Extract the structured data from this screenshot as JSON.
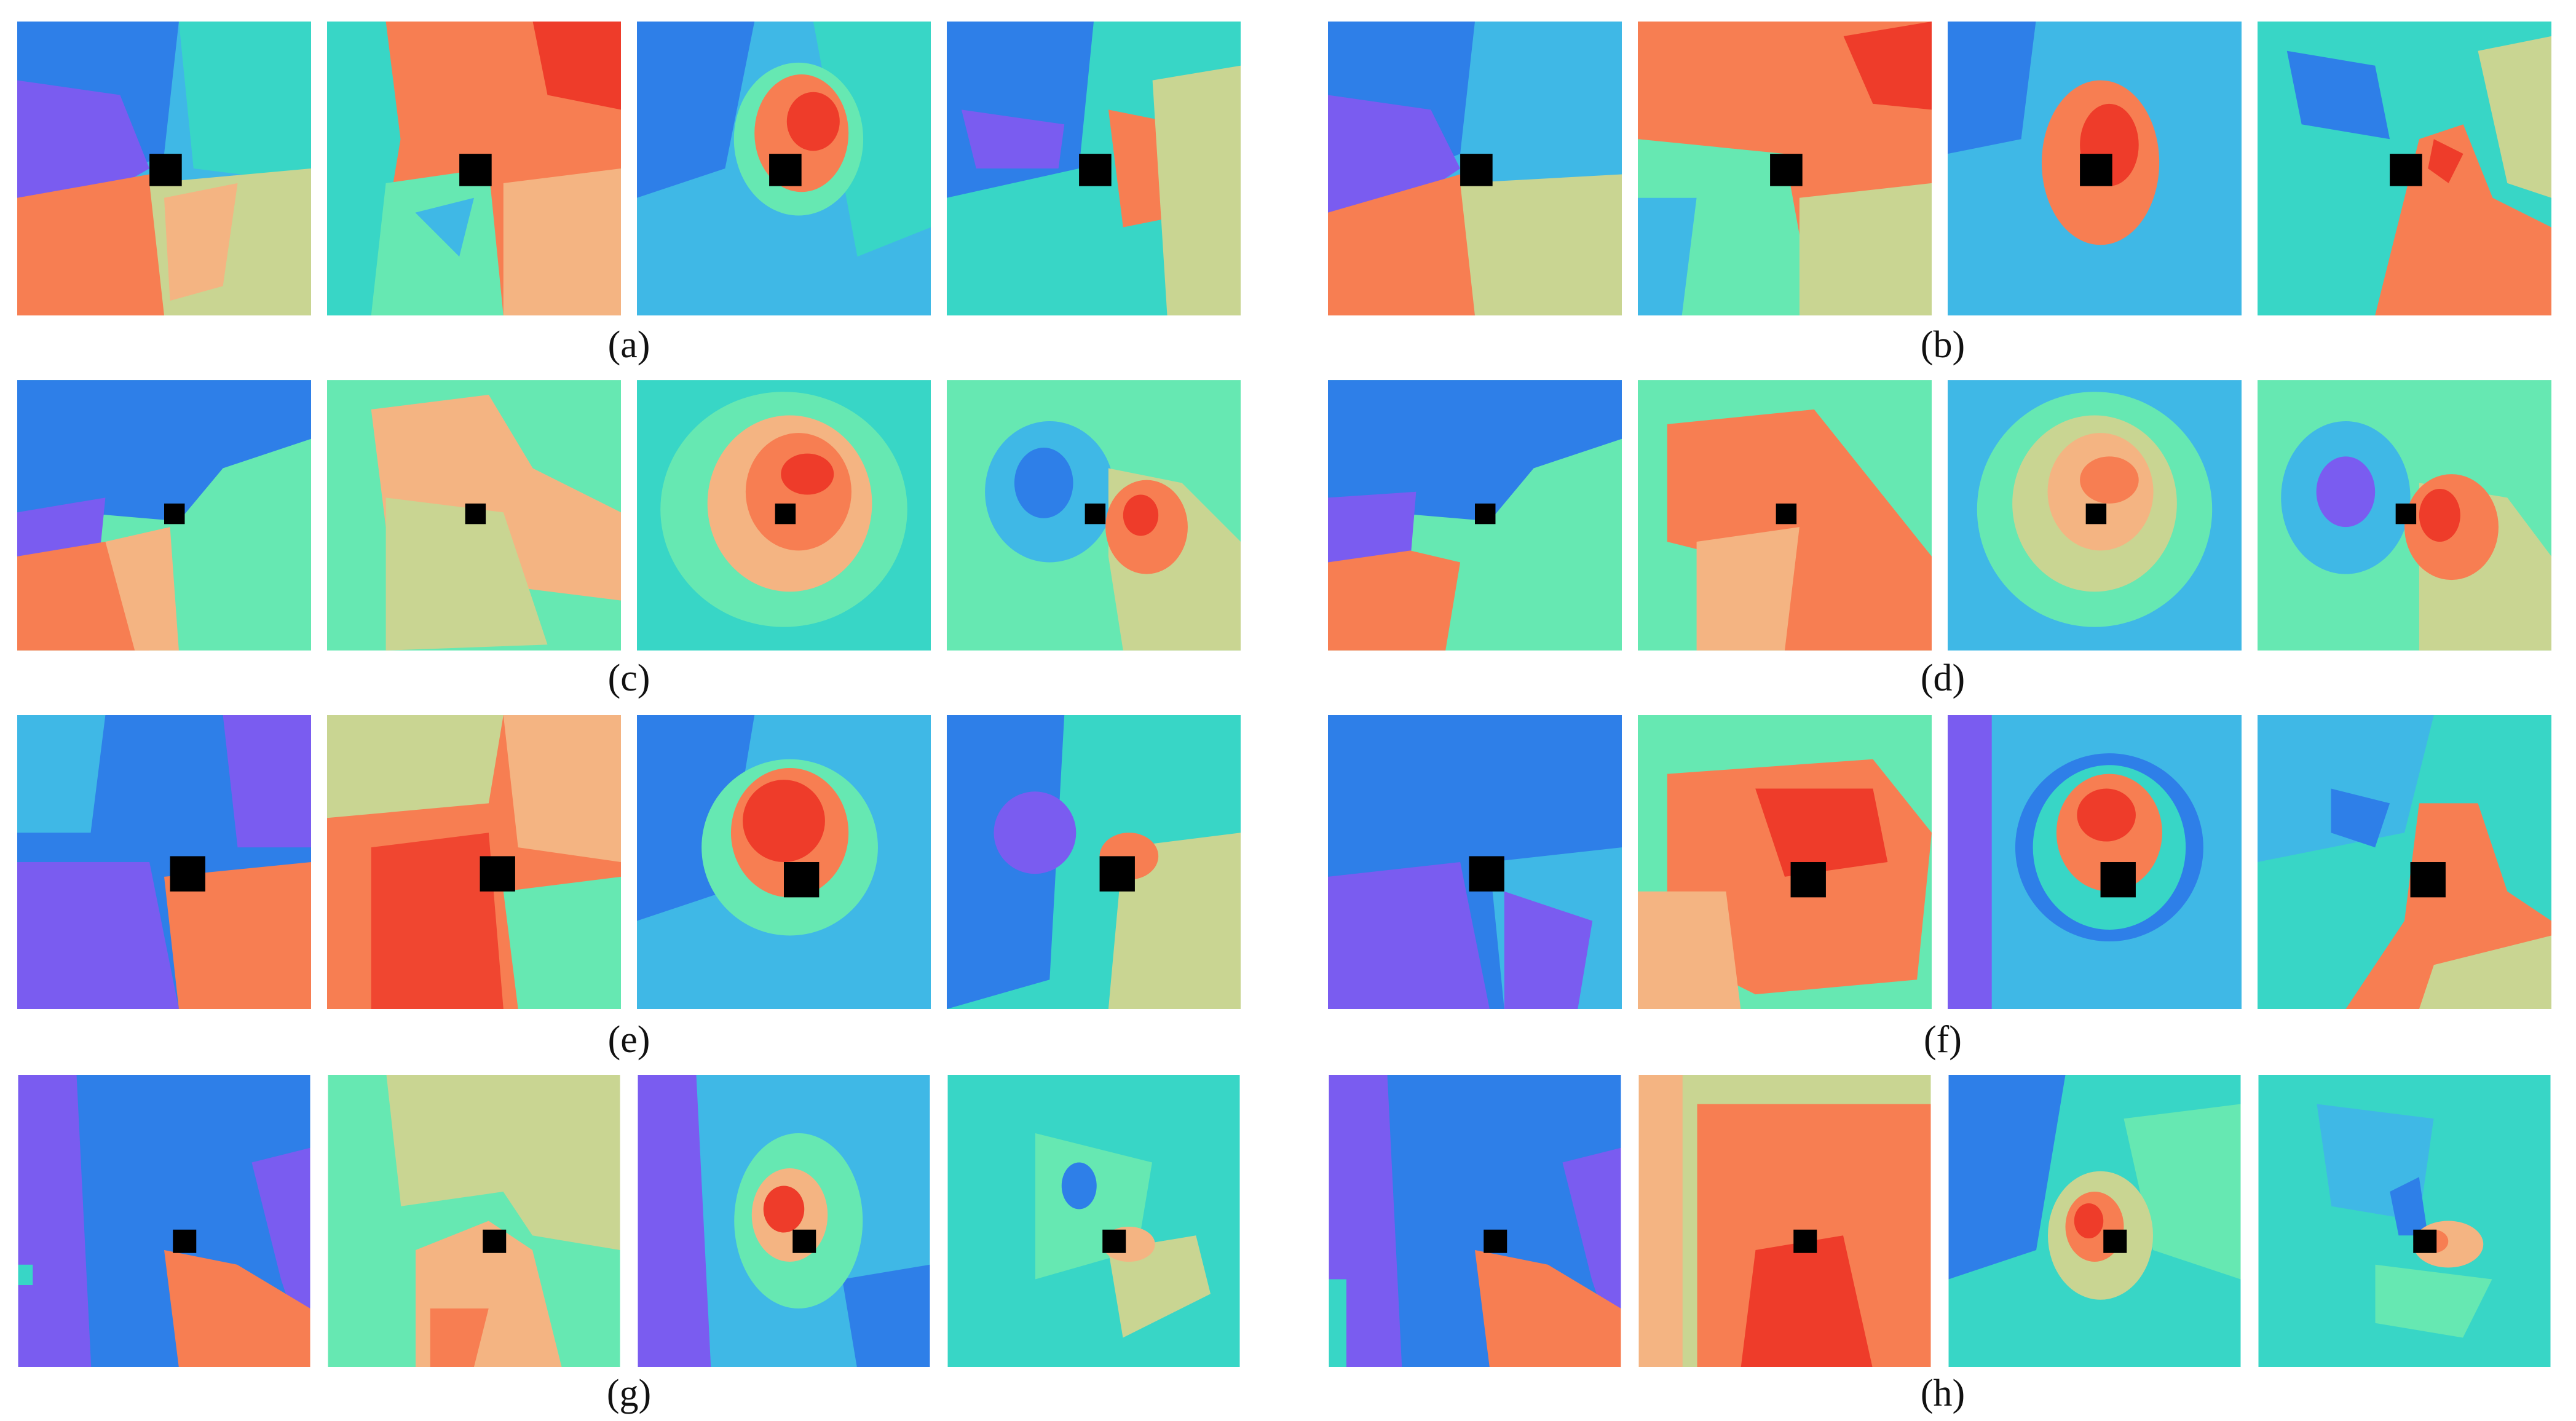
{
  "figure": {
    "captions": {
      "a": "(a)",
      "b": "(b)",
      "c": "(c)",
      "d": "(d)",
      "e": "(e)",
      "f": "(f)",
      "g": "(g)",
      "h": "(h)"
    },
    "palette": {
      "violet": "#7A5CF0",
      "blue": "#2E7FE8",
      "sky": "#3FB8E6",
      "cyan": "#38D6C6",
      "mint": "#66E8B2",
      "sage": "#C9D592",
      "peach": "#F4B482",
      "orange": "#F77E52",
      "red": "#EE3C2A",
      "marker": "#000000"
    },
    "panel_count": 8,
    "tiles_per_panel": 4
  }
}
